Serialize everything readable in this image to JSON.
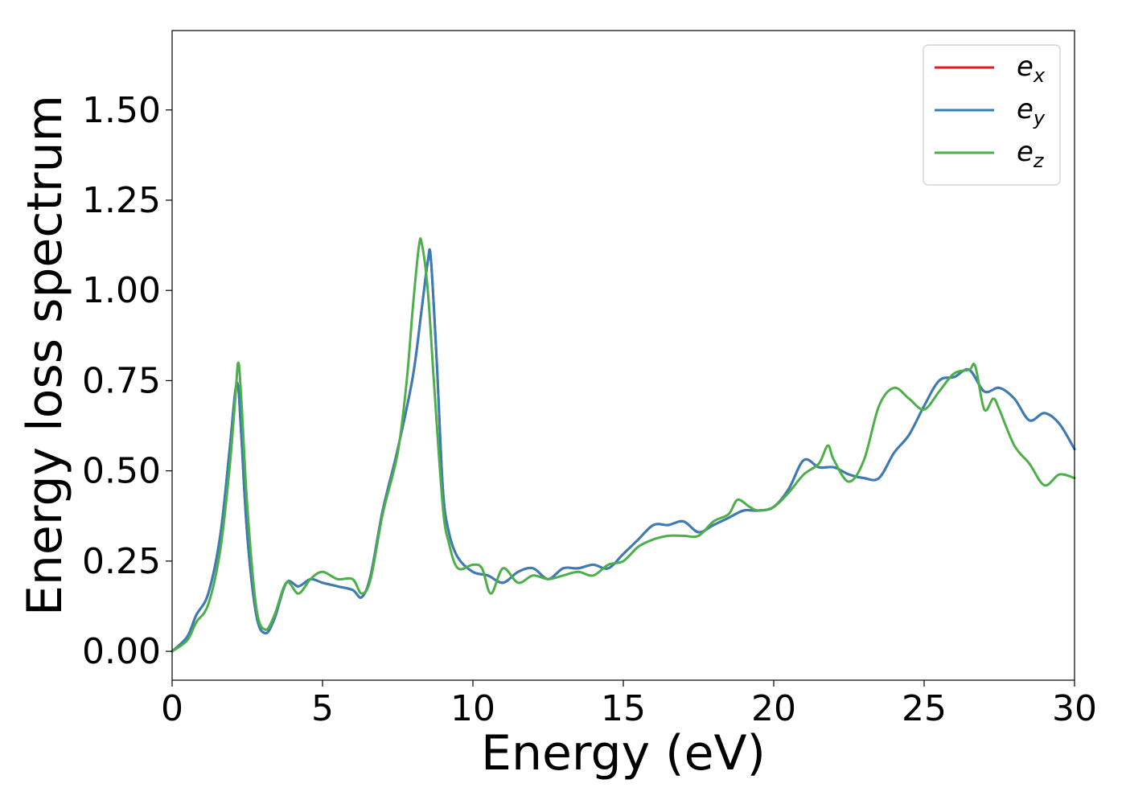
{
  "chart_data": {
    "type": "line",
    "title": "",
    "xlabel": "Energy (eV)",
    "ylabel": "Energy loss spectrum",
    "xlim": [
      0,
      30
    ],
    "ylim": [
      -0.08,
      1.72
    ],
    "xticks": [
      0,
      5,
      10,
      15,
      20,
      25,
      30
    ],
    "xtick_labels": [
      "0",
      "5",
      "10",
      "15",
      "20",
      "25",
      "30"
    ],
    "yticks": [
      0.0,
      0.25,
      0.5,
      0.75,
      1.0,
      1.25,
      1.5
    ],
    "ytick_labels": [
      "0.00",
      "0.25",
      "0.50",
      "0.75",
      "1.00",
      "1.25",
      "1.50"
    ],
    "grid": false,
    "legend_position": "top-right",
    "series": [
      {
        "name": "e_x",
        "legend_base": "e",
        "legend_sub": "x",
        "color": "#e41a1c",
        "x": [
          0,
          0.5,
          0.8,
          1.2,
          1.6,
          1.9,
          2.1,
          2.2,
          2.3,
          2.5,
          2.8,
          3.1,
          3.4,
          3.8,
          4.2,
          4.6,
          5.0,
          5.5,
          6.0,
          6.3,
          6.6,
          7.0,
          7.5,
          8.0,
          8.3,
          8.5,
          8.6,
          8.8,
          9.0,
          9.2,
          9.5,
          10.0,
          10.5,
          11.0,
          11.5,
          12.0,
          12.5,
          13.0,
          13.5,
          14.0,
          14.5,
          15.0,
          15.5,
          16.0,
          16.5,
          17.0,
          17.5,
          18.0,
          18.5,
          19.0,
          19.5,
          20.0,
          20.5,
          21.0,
          21.5,
          22.0,
          22.5,
          23.0,
          23.5,
          24.0,
          24.5,
          25.0,
          25.5,
          26.0,
          26.5,
          27.0,
          27.5,
          28.0,
          28.5,
          29.0,
          29.5,
          30.0
        ],
        "y": [
          0.0,
          0.04,
          0.1,
          0.16,
          0.32,
          0.55,
          0.72,
          0.73,
          0.6,
          0.32,
          0.1,
          0.05,
          0.09,
          0.19,
          0.18,
          0.2,
          0.19,
          0.18,
          0.17,
          0.15,
          0.21,
          0.39,
          0.56,
          0.76,
          0.95,
          1.08,
          1.09,
          0.8,
          0.45,
          0.33,
          0.26,
          0.22,
          0.21,
          0.19,
          0.22,
          0.23,
          0.2,
          0.23,
          0.23,
          0.24,
          0.23,
          0.27,
          0.31,
          0.35,
          0.35,
          0.36,
          0.33,
          0.35,
          0.37,
          0.39,
          0.39,
          0.4,
          0.45,
          0.53,
          0.51,
          0.51,
          0.49,
          0.48,
          0.48,
          0.55,
          0.6,
          0.68,
          0.75,
          0.76,
          0.78,
          0.72,
          0.73,
          0.7,
          0.64,
          0.66,
          0.63,
          0.56
        ]
      },
      {
        "name": "e_y",
        "legend_base": "e",
        "legend_sub": "y",
        "color": "#377eb8",
        "x": [
          0,
          0.5,
          0.8,
          1.2,
          1.6,
          1.9,
          2.1,
          2.2,
          2.3,
          2.5,
          2.8,
          3.1,
          3.4,
          3.8,
          4.2,
          4.6,
          5.0,
          5.5,
          6.0,
          6.3,
          6.6,
          7.0,
          7.5,
          8.0,
          8.3,
          8.5,
          8.6,
          8.8,
          9.0,
          9.2,
          9.5,
          10.0,
          10.5,
          11.0,
          11.5,
          12.0,
          12.5,
          13.0,
          13.5,
          14.0,
          14.5,
          15.0,
          15.5,
          16.0,
          16.5,
          17.0,
          17.5,
          18.0,
          18.5,
          19.0,
          19.5,
          20.0,
          20.5,
          21.0,
          21.5,
          22.0,
          22.5,
          23.0,
          23.5,
          24.0,
          24.5,
          25.0,
          25.5,
          26.0,
          26.5,
          27.0,
          27.5,
          28.0,
          28.5,
          29.0,
          29.5,
          30.0
        ],
        "y": [
          0.0,
          0.04,
          0.1,
          0.16,
          0.32,
          0.55,
          0.72,
          0.73,
          0.6,
          0.32,
          0.1,
          0.05,
          0.09,
          0.19,
          0.18,
          0.2,
          0.19,
          0.18,
          0.17,
          0.15,
          0.21,
          0.39,
          0.56,
          0.76,
          0.95,
          1.08,
          1.09,
          0.8,
          0.45,
          0.33,
          0.26,
          0.22,
          0.21,
          0.19,
          0.22,
          0.23,
          0.2,
          0.23,
          0.23,
          0.24,
          0.23,
          0.27,
          0.31,
          0.35,
          0.35,
          0.36,
          0.33,
          0.35,
          0.37,
          0.39,
          0.39,
          0.4,
          0.45,
          0.53,
          0.51,
          0.51,
          0.49,
          0.48,
          0.48,
          0.55,
          0.6,
          0.68,
          0.75,
          0.76,
          0.78,
          0.72,
          0.73,
          0.7,
          0.64,
          0.66,
          0.63,
          0.56
        ]
      },
      {
        "name": "e_z",
        "legend_base": "e",
        "legend_sub": "z",
        "color": "#4daf4a",
        "x": [
          0,
          0.5,
          0.8,
          1.2,
          1.6,
          1.9,
          2.1,
          2.2,
          2.3,
          2.5,
          2.8,
          3.1,
          3.4,
          3.8,
          4.2,
          4.6,
          5.0,
          5.5,
          6.0,
          6.3,
          6.6,
          7.0,
          7.5,
          7.8,
          8.0,
          8.2,
          8.3,
          8.5,
          8.7,
          9.0,
          9.2,
          9.5,
          10.0,
          10.3,
          10.6,
          11.0,
          11.5,
          12.0,
          12.5,
          13.0,
          13.5,
          14.0,
          14.5,
          15.0,
          15.5,
          16.0,
          16.5,
          17.0,
          17.5,
          18.0,
          18.5,
          18.8,
          19.2,
          19.5,
          20.0,
          20.5,
          21.0,
          21.5,
          21.8,
          22.0,
          22.5,
          23.0,
          23.5,
          24.0,
          24.5,
          25.0,
          25.5,
          26.0,
          26.5,
          26.7,
          27.0,
          27.3,
          27.5,
          28.0,
          28.5,
          29.0,
          29.5,
          30.0
        ],
        "y": [
          0.0,
          0.03,
          0.08,
          0.13,
          0.28,
          0.5,
          0.7,
          0.8,
          0.7,
          0.4,
          0.12,
          0.06,
          0.1,
          0.19,
          0.16,
          0.2,
          0.22,
          0.2,
          0.2,
          0.16,
          0.2,
          0.38,
          0.55,
          0.75,
          0.95,
          1.12,
          1.13,
          1.0,
          0.75,
          0.4,
          0.3,
          0.23,
          0.24,
          0.23,
          0.16,
          0.23,
          0.19,
          0.21,
          0.2,
          0.21,
          0.22,
          0.21,
          0.24,
          0.25,
          0.29,
          0.31,
          0.32,
          0.32,
          0.32,
          0.36,
          0.38,
          0.42,
          0.4,
          0.39,
          0.4,
          0.44,
          0.49,
          0.52,
          0.57,
          0.53,
          0.47,
          0.53,
          0.68,
          0.73,
          0.7,
          0.67,
          0.72,
          0.77,
          0.78,
          0.79,
          0.67,
          0.7,
          0.67,
          0.57,
          0.52,
          0.46,
          0.49,
          0.48
        ]
      }
    ]
  }
}
